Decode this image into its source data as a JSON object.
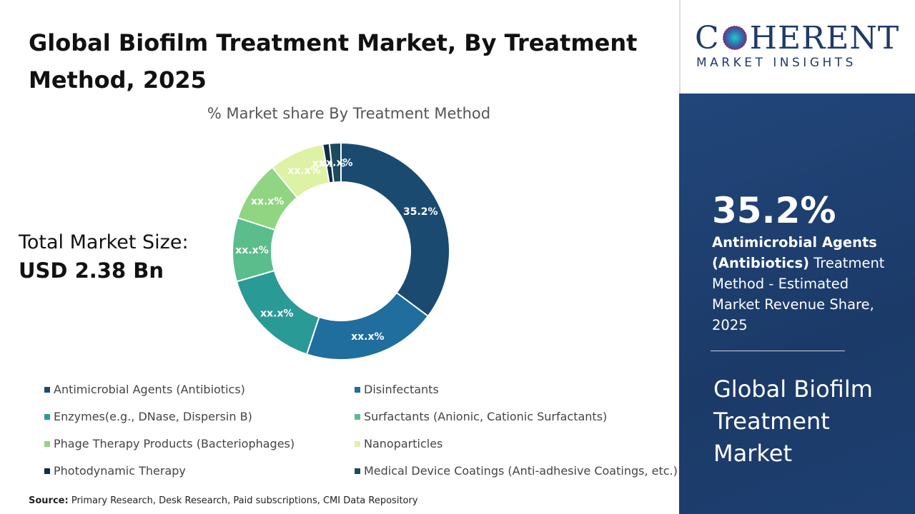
{
  "header": {
    "title": "Global Biofilm Treatment Market, By Treatment Method, 2025"
  },
  "market_size": {
    "label": "Total Market Size:",
    "value": "USD 2.38 Bn"
  },
  "chart_data": {
    "type": "donut",
    "subtitle": "% Market share By Treatment Method",
    "categories": [
      "Antimicrobial Agents (Antibiotics)",
      "Disinfectants",
      "Enzymes(e.g., DNase, Dispersin B)",
      "Surfactants (Anionic, Cationic Surfactants)",
      "Phage Therapy Products (Bacteriophages)",
      "Nanoparticles",
      "Photodynamic Therapy",
      "Medical Device Coatings (Anti-adhesive Coatings, etc.)"
    ],
    "values": [
      35.2,
      19.9,
      15.4,
      9.5,
      9.1,
      8.2,
      1.0,
      1.7
    ],
    "value_labels": [
      "35.2%",
      "xx.x%",
      "xx.x%",
      "xx.x%",
      "xx.x%",
      "xx.x%",
      "xx.x%",
      "xx.x%"
    ],
    "colors": [
      "#1b4a70",
      "#1f6e9e",
      "#2a9a97",
      "#5bbd8c",
      "#90d581",
      "#ddf2a4",
      "#0f2d46",
      "#1a4b5e"
    ]
  },
  "source": {
    "label": "Source:",
    "text": "Primary Research, Desk Research, Paid subscriptions, CMI Data Repository"
  },
  "logo": {
    "name_start": "C",
    "name_end": "HERENT",
    "tagline": "MARKET INSIGHTS"
  },
  "side_panel": {
    "stat": "35.2%",
    "description_bold": "Antimicrobial Agents (Antibiotics)",
    "description_rest": "Treatment Method - Estimated Market Revenue Share, 2025",
    "market_name": "Global Biofilm Treatment Market"
  }
}
